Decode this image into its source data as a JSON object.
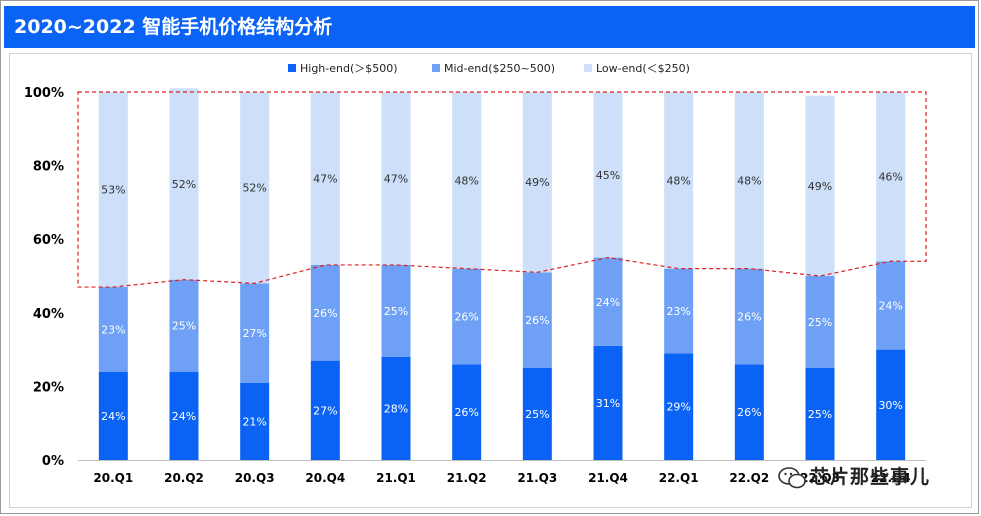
{
  "title": "2020~2022 智能手机价格结构分析",
  "watermark": "芯片那些事儿",
  "chart_data": {
    "type": "bar",
    "stacked": true,
    "categories": [
      "20.Q1",
      "20.Q2",
      "20.Q3",
      "20.Q4",
      "21.Q1",
      "21.Q2",
      "21.Q3",
      "21.Q4",
      "22.Q1",
      "22.Q2",
      "22.Q3",
      "22.Q4"
    ],
    "series": [
      {
        "name": "High-end(＞$500)",
        "color": "#0a63f4",
        "label_color": "#ffffff",
        "values": [
          24,
          24,
          21,
          27,
          28,
          26,
          25,
          31,
          29,
          26,
          25,
          30
        ]
      },
      {
        "name": "Mid-end($250~500)",
        "color": "#6ea1f6",
        "label_color": "#ffffff",
        "values": [
          23,
          25,
          27,
          26,
          25,
          26,
          26,
          24,
          23,
          26,
          25,
          24
        ]
      },
      {
        "name": "Low-end(＜$250)",
        "color": "#cddff9",
        "label_color": "#333333",
        "values": [
          53,
          52,
          52,
          47,
          47,
          48,
          49,
          45,
          48,
          48,
          49,
          46
        ]
      }
    ],
    "ylim": [
      0,
      100
    ],
    "yticks": [
      "0%",
      "20%",
      "40%",
      "60%",
      "80%",
      "100%"
    ],
    "xlabel": "",
    "ylabel": "",
    "legend_position": "top",
    "grid": false,
    "annotation": "red dashed outline around the low-end segments"
  }
}
